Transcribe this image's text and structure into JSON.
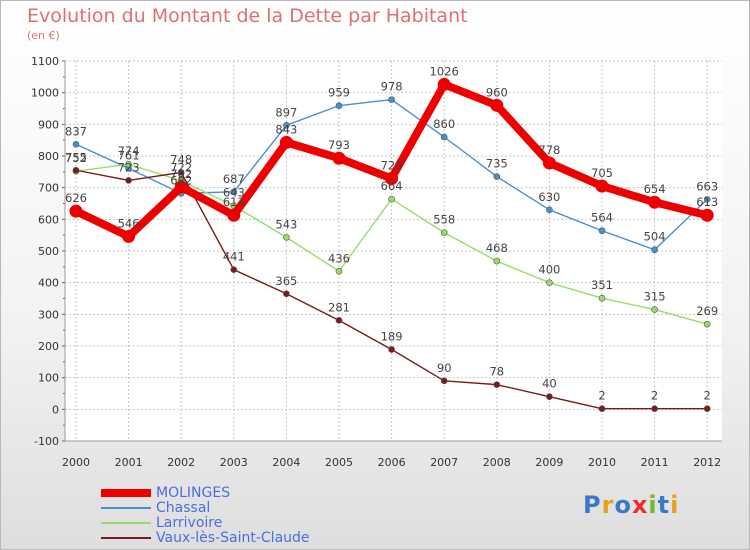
{
  "title": "Evolution du Montant de la Dette par Habitant",
  "unit": "(en €)",
  "logo": {
    "text": "Proxiti",
    "letter_colors": [
      "#3a78c8",
      "#e8a020",
      "#3a78c8",
      "#e83030",
      "#70b830",
      "#3a78c8",
      "#e8a020"
    ]
  },
  "chart_data": {
    "type": "line",
    "x": [
      "2000",
      "2001",
      "2002",
      "2003",
      "2004",
      "2005",
      "2006",
      "2007",
      "2008",
      "2009",
      "2010",
      "2011",
      "2012"
    ],
    "ylim": [
      -100,
      1100
    ],
    "yticks": [
      "1100",
      "1000",
      "900",
      "800",
      "700",
      "600",
      "500",
      "400",
      "300",
      "200",
      "100",
      "0",
      "-100"
    ],
    "grid": true,
    "legend_position": "bottom-left",
    "series": [
      {
        "name": "MOLINGES",
        "color": "#ee0000",
        "values": [
          626,
          546,
          702,
          613,
          843,
          793,
          729,
          1026,
          960,
          778,
          705,
          654,
          613
        ],
        "labels": [
          "626",
          "546",
          "702",
          "613",
          "843",
          "793",
          "729",
          "1026",
          "960",
          "778",
          "705",
          "654",
          "613"
        ]
      },
      {
        "name": "Chassal",
        "color": "#4a8fd0",
        "values": [
          837,
          761,
          682,
          687,
          897,
          959,
          978,
          860,
          735,
          630,
          564,
          504,
          663
        ],
        "labels": [
          "837",
          "761",
          "682",
          "687",
          "897",
          "959",
          "978",
          "860",
          "735",
          "630",
          "564",
          "504",
          "663"
        ]
      },
      {
        "name": "Larrivoire",
        "color": "#99dd66",
        "values": [
          752,
          774,
          722,
          643,
          543,
          436,
          664,
          558,
          468,
          400,
          351,
          315,
          269
        ],
        "labels": [
          "752",
          "774",
          "722",
          "643",
          "543",
          "436",
          "664",
          "558",
          "468",
          "400",
          "351",
          "315",
          "269"
        ]
      },
      {
        "name": "Vaux-lès-Saint-Claude",
        "color": "#7a1a1a",
        "values": [
          755,
          723,
          748,
          441,
          365,
          281,
          189,
          90,
          78,
          40,
          2,
          2,
          2
        ],
        "labels": [
          "755",
          "723",
          "748",
          "441",
          "365",
          "281",
          "189",
          "90",
          "78",
          "40",
          "2",
          "2",
          "2"
        ]
      }
    ]
  }
}
